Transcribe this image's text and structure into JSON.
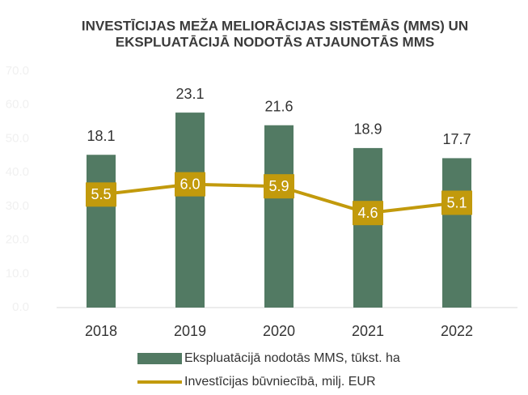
{
  "chart_data": {
    "type": "bar-line",
    "title": [
      "INVESTĪCIJAS MEŽA MELIORĀCIJAS SISTĒMĀS (MMS) UN",
      "EKSPLUATĀCIJĀ NODOTĀS ATJAUNOTĀS MMS"
    ],
    "categories": [
      "2018",
      "2019",
      "2020",
      "2021",
      "2022"
    ],
    "ylim": [
      0,
      70
    ],
    "yticks": [
      {
        "value": 0,
        "label": "0.0"
      },
      {
        "value": 10,
        "label": "10.0"
      },
      {
        "value": 20,
        "label": "20.0"
      },
      {
        "value": 30,
        "label": "30.0"
      },
      {
        "value": 40,
        "label": "40.0"
      },
      {
        "value": 50,
        "label": "50.0"
      },
      {
        "value": 60,
        "label": "60.0"
      },
      {
        "value": 70,
        "label": "70.0"
      }
    ],
    "y2lim": [
      0,
      28
    ],
    "y3lim": [
      0,
      11.5
    ],
    "series": [
      {
        "name": "Ekspluatācijā nodotās MMS, tūkst. ha",
        "type": "bar",
        "axis": "y2",
        "color": "#527a63",
        "values": [
          18.1,
          23.1,
          21.6,
          18.9,
          17.7
        ]
      },
      {
        "name": "Investīcijas būvniecībā, milj. EUR",
        "type": "line",
        "axis": "y3",
        "color": "#c29a0c",
        "values": [
          5.5,
          6,
          5.9,
          4.6,
          5.1
        ],
        "value_labels": [
          "5.5",
          "6.0",
          "5.9",
          "4.6",
          "5.1"
        ]
      }
    ],
    "legend": "bottom"
  }
}
